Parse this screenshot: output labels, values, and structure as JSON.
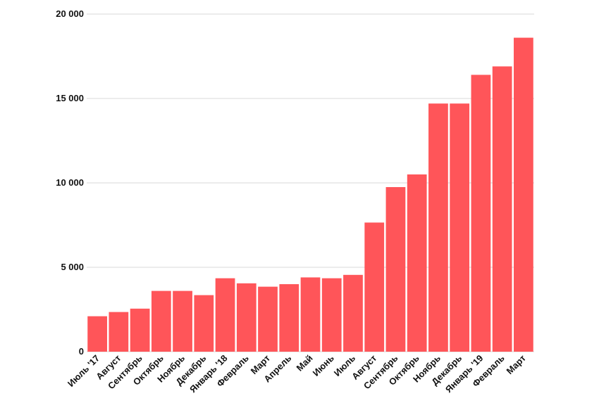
{
  "chart_data": {
    "type": "bar",
    "title": "",
    "xlabel": "",
    "ylabel": "",
    "categories": [
      "Июль '17",
      "Август",
      "Сентябрь",
      "Октябрь",
      "Ноябрь",
      "Декабрь",
      "Январь '18",
      "Февраль",
      "Март",
      "Апрель",
      "Май",
      "Июнь",
      "Июль",
      "Август",
      "Сентябрь",
      "Октябрь",
      "Ноябрь",
      "Декабрь",
      "Январь '19",
      "Февраль",
      "Март"
    ],
    "values": [
      2100,
      2350,
      2550,
      3600,
      3600,
      3350,
      4350,
      4050,
      3850,
      4000,
      4400,
      4350,
      4550,
      7650,
      9750,
      10500,
      14700,
      14700,
      16400,
      16900,
      18600
    ],
    "ylim": [
      0,
      20000
    ],
    "yticks": [
      0,
      5000,
      10000,
      15000,
      20000
    ],
    "ytick_labels": [
      "0",
      "5 000",
      "10 000",
      "15 000",
      "20 000"
    ],
    "grid": true,
    "colors": {
      "bar": "#ff5559",
      "grid": "#d9d9d9",
      "text": "#111111"
    }
  }
}
